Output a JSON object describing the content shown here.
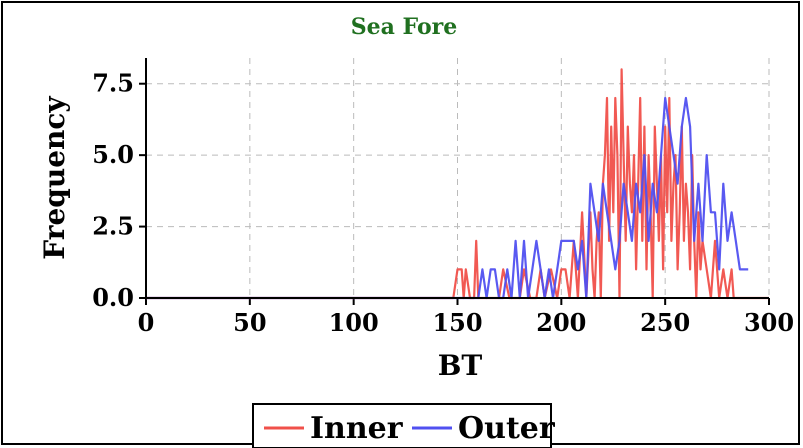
{
  "chart_data": {
    "type": "line",
    "title": "Sea Fore",
    "xlabel": "BT",
    "ylabel": "Frequency",
    "xlim": [
      0,
      300
    ],
    "ylim": [
      0,
      8.4
    ],
    "x_ticks": [
      "0",
      "50",
      "100",
      "150",
      "200",
      "250",
      "300"
    ],
    "y_ticks": [
      "0.0",
      "2.5",
      "5.0",
      "7.5"
    ],
    "grid": true,
    "legend_position": "bottom-center",
    "series": [
      {
        "name": "Inner",
        "color": "#f0504a",
        "x": [
          0,
          148,
          150,
          152,
          153,
          154,
          156,
          158,
          159,
          160,
          162,
          170,
          172,
          175,
          178,
          180,
          182,
          185,
          188,
          190,
          192,
          195,
          198,
          200,
          202,
          204,
          206,
          208,
          210,
          212,
          214,
          215,
          216,
          217,
          218,
          219,
          220,
          221,
          222,
          223,
          224,
          225,
          226,
          227,
          228,
          229,
          230,
          231,
          232,
          233,
          234,
          235,
          236,
          237,
          238,
          239,
          240,
          241,
          242,
          243,
          244,
          245,
          246,
          247,
          248,
          249,
          250,
          251,
          252,
          253,
          254,
          255,
          256,
          257,
          258,
          259,
          260,
          261,
          262,
          263,
          264,
          265,
          266,
          267,
          268,
          270,
          272,
          274,
          276,
          278,
          280,
          282,
          283,
          284,
          285,
          288,
          290,
          292,
          294,
          296,
          298,
          300
        ],
        "values": [
          0,
          0,
          1,
          1,
          0,
          1,
          0,
          0,
          2,
          0,
          0,
          0,
          1,
          0,
          0,
          0,
          1,
          0,
          0,
          1,
          0,
          1,
          0,
          1,
          1,
          0,
          2,
          0,
          3,
          0,
          3,
          1,
          0,
          2,
          3,
          0,
          4,
          5,
          7,
          2,
          6,
          3,
          7,
          5,
          0,
          8,
          5,
          2,
          6,
          4,
          3,
          5,
          1,
          4,
          7,
          2,
          6,
          1,
          5,
          3,
          0,
          6,
          4,
          2,
          5,
          1,
          6,
          3,
          7,
          2,
          4,
          5,
          1,
          3,
          6,
          2,
          4,
          3,
          1,
          5,
          2,
          0,
          3,
          1,
          2,
          1,
          0,
          2,
          0,
          1,
          0,
          1,
          0,
          0,
          0,
          0,
          0,
          0,
          0,
          0,
          0,
          0
        ]
      },
      {
        "name": "Outer",
        "color": "#5050f0",
        "x": [
          0,
          160,
          162,
          164,
          166,
          168,
          170,
          172,
          174,
          176,
          178,
          180,
          182,
          184,
          186,
          188,
          190,
          192,
          194,
          196,
          198,
          200,
          202,
          204,
          206,
          208,
          210,
          212,
          214,
          216,
          218,
          220,
          222,
          224,
          226,
          228,
          230,
          232,
          234,
          236,
          238,
          240,
          242,
          244,
          246,
          248,
          250,
          252,
          254,
          256,
          258,
          260,
          262,
          264,
          266,
          268,
          270,
          272,
          274,
          276,
          278,
          280,
          282,
          284,
          286,
          288,
          290
        ],
        "values": [
          0,
          0,
          1,
          0,
          1,
          1,
          0,
          0,
          1,
          0,
          2,
          0,
          2,
          0,
          1,
          2,
          1,
          0,
          1,
          0,
          1,
          2,
          2,
          2,
          2,
          1,
          2,
          0,
          4,
          3,
          2,
          4,
          3,
          2,
          1,
          2,
          4,
          3,
          2,
          4,
          3,
          5,
          2,
          4,
          3,
          5,
          7,
          6,
          5,
          4,
          6,
          7,
          6,
          2,
          4,
          2,
          5,
          3,
          3,
          1,
          4,
          2,
          3,
          2,
          1,
          1,
          1
        ]
      }
    ]
  }
}
